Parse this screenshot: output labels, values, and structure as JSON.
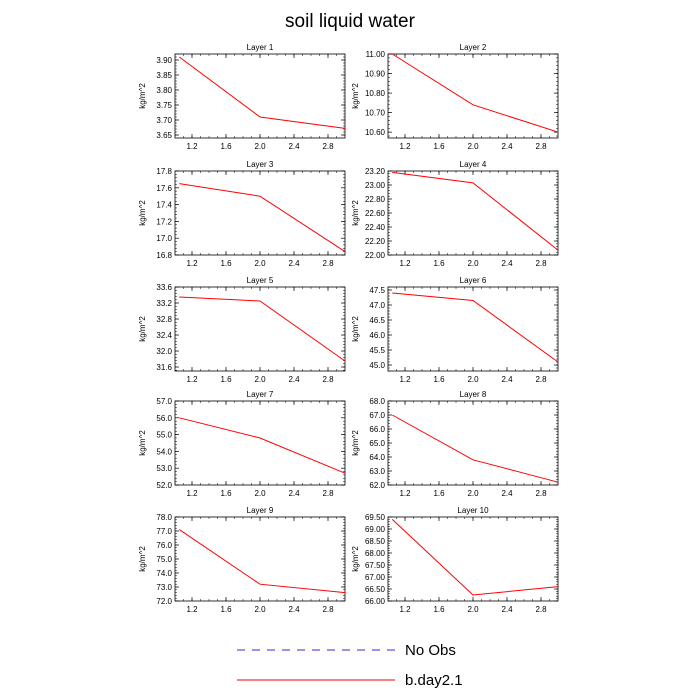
{
  "title": "soil liquid water",
  "colors": {
    "series_line": "#ff0000",
    "no_obs_line": "#2b2bd9",
    "axis": "#000000"
  },
  "legend": [
    {
      "label": "No Obs",
      "style": "dashed",
      "color": "#2b2bd9"
    },
    {
      "label": "b.day2.1",
      "style": "solid",
      "color": "#ff0000"
    }
  ],
  "chart_data": [
    {
      "type": "line",
      "title": "Layer 1",
      "ylabel": "kg/m^2",
      "xlim": [
        1,
        3
      ],
      "ylim": [
        3.64,
        3.92
      ],
      "xticks": [
        1.2,
        1.6,
        2.0,
        2.4,
        2.8
      ],
      "xtick_labels": [
        "1.2",
        "1.6",
        "2.0",
        "2.4",
        "2.8"
      ],
      "yticks": [
        3.65,
        3.7,
        3.75,
        3.8,
        3.85,
        3.9
      ],
      "ytick_labels": [
        "3.65",
        "3.70",
        "3.75",
        "3.80",
        "3.85",
        "3.90"
      ],
      "series": [
        {
          "name": "b.day2.1",
          "x": [
            1.05,
            2.0,
            3.0
          ],
          "y": [
            3.91,
            3.71,
            3.672
          ]
        }
      ]
    },
    {
      "type": "line",
      "title": "Layer 2",
      "ylabel": "kg/m^2",
      "xlim": [
        1,
        3
      ],
      "ylim": [
        10.57,
        11.0
      ],
      "xticks": [
        1.2,
        1.6,
        2.0,
        2.4,
        2.8
      ],
      "xtick_labels": [
        "1.2",
        "1.6",
        "2.0",
        "2.4",
        "2.8"
      ],
      "yticks": [
        10.6,
        10.7,
        10.8,
        10.9,
        11.0
      ],
      "ytick_labels": [
        "10.60",
        "10.70",
        "10.80",
        "10.90",
        "11.00"
      ],
      "series": [
        {
          "name": "b.day2.1",
          "x": [
            1.05,
            2.0,
            3.0
          ],
          "y": [
            11.0,
            10.74,
            10.6
          ]
        }
      ]
    },
    {
      "type": "line",
      "title": "Layer 3",
      "ylabel": "kg/m^2",
      "xlim": [
        1,
        3
      ],
      "ylim": [
        16.8,
        17.8
      ],
      "xticks": [
        1.2,
        1.6,
        2.0,
        2.4,
        2.8
      ],
      "xtick_labels": [
        "1.2",
        "1.6",
        "2.0",
        "2.4",
        "2.8"
      ],
      "yticks": [
        16.8,
        17.0,
        17.2,
        17.4,
        17.6,
        17.8
      ],
      "ytick_labels": [
        "16.8",
        "17.0",
        "17.2",
        "17.4",
        "17.6",
        "17.8"
      ],
      "series": [
        {
          "name": "b.day2.1",
          "x": [
            1.05,
            2.0,
            3.0
          ],
          "y": [
            17.65,
            17.5,
            16.84
          ]
        }
      ]
    },
    {
      "type": "line",
      "title": "Layer 4",
      "ylabel": "kg/m^2",
      "xlim": [
        1,
        3
      ],
      "ylim": [
        22.0,
        23.2
      ],
      "xticks": [
        1.2,
        1.6,
        2.0,
        2.4,
        2.8
      ],
      "xtick_labels": [
        "1.2",
        "1.6",
        "2.0",
        "2.4",
        "2.8"
      ],
      "yticks": [
        22.0,
        22.2,
        22.4,
        22.6,
        22.8,
        23.0,
        23.2
      ],
      "ytick_labels": [
        "22.00",
        "22.20",
        "22.40",
        "22.60",
        "22.80",
        "23.00",
        "23.20"
      ],
      "series": [
        {
          "name": "b.day2.1",
          "x": [
            1.05,
            2.0,
            3.0
          ],
          "y": [
            23.18,
            23.03,
            22.07
          ]
        }
      ]
    },
    {
      "type": "line",
      "title": "Layer 5",
      "ylabel": "kg/m^2",
      "xlim": [
        1,
        3
      ],
      "ylim": [
        31.5,
        33.6
      ],
      "xticks": [
        1.2,
        1.6,
        2.0,
        2.4,
        2.8
      ],
      "xtick_labels": [
        "1.2",
        "1.6",
        "2.0",
        "2.4",
        "2.8"
      ],
      "yticks": [
        31.6,
        32.0,
        32.4,
        32.8,
        33.2,
        33.6
      ],
      "ytick_labels": [
        "31.6",
        "32.0",
        "32.4",
        "32.8",
        "33.2",
        "33.6"
      ],
      "series": [
        {
          "name": "b.day2.1",
          "x": [
            1.05,
            2.0,
            3.0
          ],
          "y": [
            33.35,
            33.25,
            31.75
          ]
        }
      ]
    },
    {
      "type": "line",
      "title": "Layer 6",
      "ylabel": "kg/m^2",
      "xlim": [
        1,
        3
      ],
      "ylim": [
        44.8,
        47.6
      ],
      "xticks": [
        1.2,
        1.6,
        2.0,
        2.4,
        2.8
      ],
      "xtick_labels": [
        "1.2",
        "1.6",
        "2.0",
        "2.4",
        "2.8"
      ],
      "yticks": [
        45.0,
        45.5,
        46.0,
        46.5,
        47.0,
        47.5
      ],
      "ytick_labels": [
        "45.0",
        "45.5",
        "46.0",
        "46.5",
        "47.0",
        "47.5"
      ],
      "series": [
        {
          "name": "b.day2.1",
          "x": [
            1.05,
            2.0,
            3.0
          ],
          "y": [
            47.4,
            47.15,
            45.1
          ]
        }
      ]
    },
    {
      "type": "line",
      "title": "Layer 7",
      "ylabel": "kg/m^2",
      "xlim": [
        1,
        3
      ],
      "ylim": [
        52.0,
        57.0
      ],
      "xticks": [
        1.2,
        1.6,
        2.0,
        2.4,
        2.8
      ],
      "xtick_labels": [
        "1.2",
        "1.6",
        "2.0",
        "2.4",
        "2.8"
      ],
      "yticks": [
        52.0,
        53.0,
        54.0,
        55.0,
        56.0,
        57.0
      ],
      "ytick_labels": [
        "52.0",
        "53.0",
        "54.0",
        "55.0",
        "56.0",
        "57.0"
      ],
      "series": [
        {
          "name": "b.day2.1",
          "x": [
            1.05,
            2.0,
            3.0
          ],
          "y": [
            56.0,
            54.8,
            52.7
          ]
        }
      ]
    },
    {
      "type": "line",
      "title": "Layer 8",
      "ylabel": "kg/m^2",
      "xlim": [
        1,
        3
      ],
      "ylim": [
        62.0,
        68.0
      ],
      "xticks": [
        1.2,
        1.6,
        2.0,
        2.4,
        2.8
      ],
      "xtick_labels": [
        "1.2",
        "1.6",
        "2.0",
        "2.4",
        "2.8"
      ],
      "yticks": [
        62.0,
        63.0,
        64.0,
        65.0,
        66.0,
        67.0,
        68.0
      ],
      "ytick_labels": [
        "62.0",
        "63.0",
        "64.0",
        "65.0",
        "66.0",
        "67.0",
        "68.0"
      ],
      "series": [
        {
          "name": "b.day2.1",
          "x": [
            1.05,
            2.0,
            3.0
          ],
          "y": [
            67.0,
            63.8,
            62.2
          ]
        }
      ]
    },
    {
      "type": "line",
      "title": "Layer 9",
      "ylabel": "kg/m^2",
      "xlim": [
        1,
        3
      ],
      "ylim": [
        72.0,
        78.0
      ],
      "xticks": [
        1.2,
        1.6,
        2.0,
        2.4,
        2.8
      ],
      "xtick_labels": [
        "1.2",
        "1.6",
        "2.0",
        "2.4",
        "2.8"
      ],
      "yticks": [
        72.0,
        73.0,
        74.0,
        75.0,
        76.0,
        77.0,
        78.0
      ],
      "ytick_labels": [
        "72.0",
        "73.0",
        "74.0",
        "75.0",
        "76.0",
        "77.0",
        "78.0"
      ],
      "series": [
        {
          "name": "b.day2.1",
          "x": [
            1.05,
            2.0,
            3.0
          ],
          "y": [
            77.1,
            73.2,
            72.6
          ]
        }
      ]
    },
    {
      "type": "line",
      "title": "Layer 10",
      "ylabel": "kg/m^2",
      "xlim": [
        1,
        3
      ],
      "ylim": [
        66.0,
        69.5
      ],
      "xticks": [
        1.2,
        1.6,
        2.0,
        2.4,
        2.8
      ],
      "xtick_labels": [
        "1.2",
        "1.6",
        "2.0",
        "2.4",
        "2.8"
      ],
      "yticks": [
        66.0,
        66.5,
        67.0,
        67.5,
        68.0,
        68.5,
        69.0,
        69.5
      ],
      "ytick_labels": [
        "66.00",
        "66.50",
        "67.00",
        "67.50",
        "68.00",
        "68.50",
        "69.00",
        "69.50"
      ],
      "series": [
        {
          "name": "b.day2.1",
          "x": [
            1.05,
            2.0,
            3.0
          ],
          "y": [
            69.4,
            66.25,
            66.6
          ]
        }
      ]
    }
  ]
}
